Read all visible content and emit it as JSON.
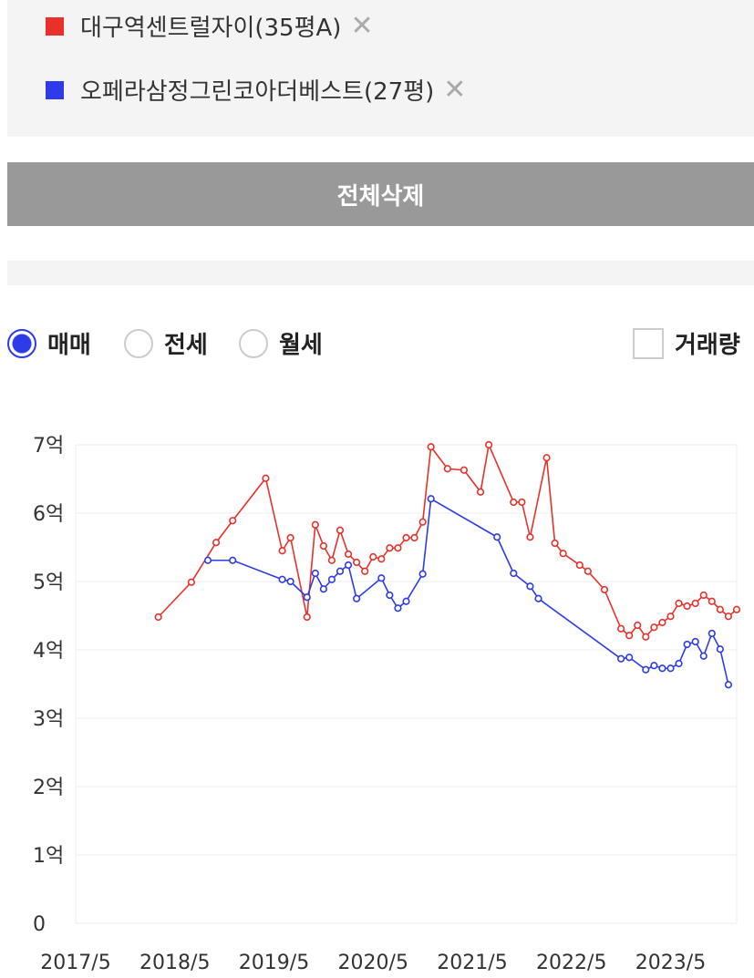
{
  "chart_data": {
    "type": "line",
    "xlim": [
      "2017/5",
      "2024/1"
    ],
    "xticks": [
      "2017/5",
      "2018/5",
      "2019/5",
      "2020/5",
      "2021/5",
      "2022/5",
      "2023/5"
    ],
    "ylim": [
      0,
      7
    ],
    "yticks": [
      0,
      {
        "value": 1,
        "label": "1억"
      },
      {
        "value": 2,
        "label": "2억"
      },
      {
        "value": 3,
        "label": "3억"
      },
      {
        "value": 4,
        "label": "4억"
      },
      {
        "value": 5,
        "label": "5억"
      },
      {
        "value": 6,
        "label": "6억"
      },
      {
        "value": 7,
        "label": "7억"
      }
    ],
    "grid": true,
    "series": [
      {
        "name": "대구역센트럴자이(35평A)",
        "color": "#e8312a",
        "x": [
          "2018/3",
          "2018/7",
          "2018/10",
          "2018/12",
          "2019/4",
          "2019/6",
          "2019/7",
          "2019/9",
          "2019/10",
          "2019/11",
          "2019/12",
          "2020/1",
          "2020/2",
          "2020/3",
          "2020/4",
          "2020/5",
          "2020/6",
          "2020/7",
          "2020/8",
          "2020/9",
          "2020/10",
          "2020/11",
          "2020/12",
          "2021/2",
          "2021/4",
          "2021/6",
          "2021/7",
          "2021/10",
          "2021/11",
          "2021/12",
          "2022/2",
          "2022/3",
          "2022/4",
          "2022/6",
          "2022/7",
          "2022/9",
          "2022/11",
          "2022/12",
          "2023/1",
          "2023/2",
          "2023/3",
          "2023/4",
          "2023/5",
          "2023/6",
          "2023/7",
          "2023/8",
          "2023/9",
          "2023/10",
          "2023/11",
          "2023/12",
          "2024/1"
        ],
        "values": [
          4.48,
          4.99,
          5.57,
          5.89,
          6.51,
          5.45,
          5.64,
          4.48,
          5.83,
          5.52,
          5.31,
          5.75,
          5.4,
          5.28,
          5.15,
          5.36,
          5.33,
          5.49,
          5.49,
          5.64,
          5.64,
          5.87,
          6.97,
          6.65,
          6.63,
          6.31,
          7.0,
          6.16,
          6.16,
          5.65,
          6.81,
          5.56,
          5.41,
          5.24,
          5.15,
          4.88,
          4.31,
          4.21,
          4.36,
          4.19,
          4.33,
          4.4,
          4.49,
          4.68,
          4.64,
          4.68,
          4.8,
          4.71,
          4.59,
          4.49,
          4.59
        ]
      },
      {
        "name": "오페라삼정그린코아더베스트(27평)",
        "color": "#2d3be8",
        "x": [
          "2018/9",
          "2018/12",
          "2019/6",
          "2019/7",
          "2019/9",
          "2019/10",
          "2019/11",
          "2019/12",
          "2020/1",
          "2020/2",
          "2020/3",
          "2020/6",
          "2020/7",
          "2020/8",
          "2020/9",
          "2020/11",
          "2020/12",
          "2021/8",
          "2021/10",
          "2021/12",
          "2022/1",
          "2022/11",
          "2022/12",
          "2023/2",
          "2023/3",
          "2023/4",
          "2023/5",
          "2023/6",
          "2023/7",
          "2023/8",
          "2023/9",
          "2023/10",
          "2023/11",
          "2023/12"
        ],
        "values": [
          5.31,
          5.31,
          5.03,
          5.0,
          4.77,
          5.12,
          4.89,
          5.03,
          5.15,
          5.24,
          4.75,
          5.05,
          4.8,
          4.61,
          4.71,
          5.11,
          6.21,
          5.65,
          5.12,
          4.93,
          4.75,
          3.87,
          3.89,
          3.71,
          3.77,
          3.73,
          3.73,
          3.8,
          4.08,
          4.12,
          3.91,
          4.24,
          4.01,
          3.49
        ]
      }
    ]
  },
  "ui": {
    "button": "전체삭제",
    "radios": [
      "매매",
      "전세",
      "월세"
    ],
    "selected_radio": 0,
    "checkbox": "거래량"
  }
}
